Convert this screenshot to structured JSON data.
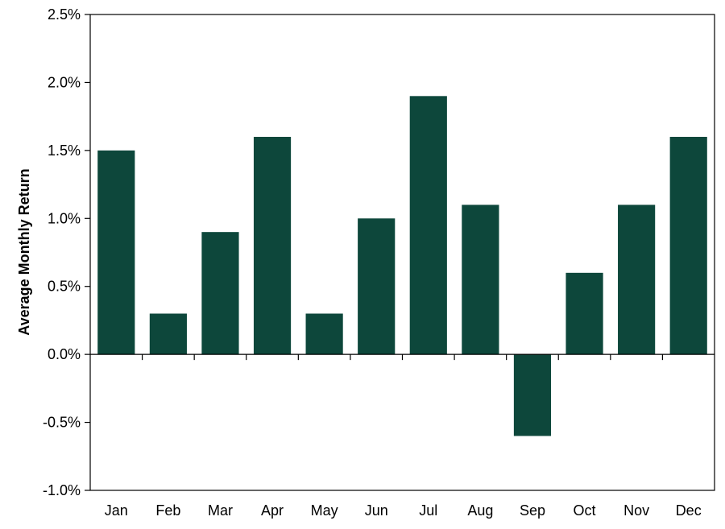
{
  "chart_data": {
    "type": "bar",
    "title": "",
    "xlabel": "",
    "ylabel": "Average Monthly Return",
    "categories": [
      "Jan",
      "Feb",
      "Mar",
      "Apr",
      "May",
      "Jun",
      "Jul",
      "Aug",
      "Sep",
      "Oct",
      "Nov",
      "Dec"
    ],
    "values": [
      1.5,
      0.3,
      0.9,
      1.6,
      0.3,
      1.0,
      1.9,
      1.1,
      -0.6,
      0.6,
      1.1,
      1.6
    ],
    "value_unit": "%",
    "ylim": [
      -1.0,
      2.5
    ],
    "yticks": [
      2.5,
      2.0,
      1.5,
      1.0,
      0.5,
      0.0,
      -0.5,
      -1.0
    ],
    "ytick_labels": [
      "2.5%",
      "2.0%",
      "1.5%",
      "1.0%",
      "0.5%",
      "0.0%",
      "-0.5%",
      "-1.0%"
    ],
    "grid": false,
    "legend": "none",
    "colors": {
      "bar": "#0d473b",
      "axis": "#000000",
      "background": "#ffffff"
    }
  }
}
